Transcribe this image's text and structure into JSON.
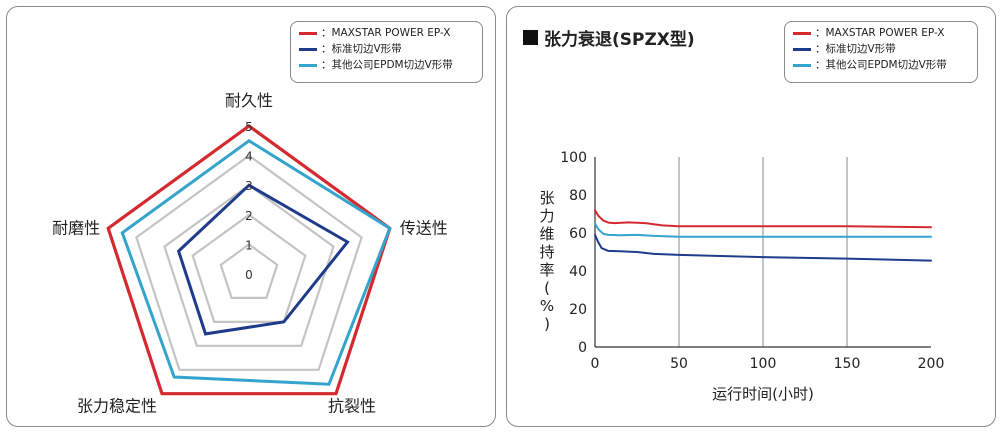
{
  "legend": {
    "items": [
      {
        "label": "：MAXSTAR POWER EP-X",
        "color": "#d42a2f"
      },
      {
        "label": "：标准切边V形带",
        "color": "#1f3c8c"
      },
      {
        "label": "：其他公司EPDM切边V形带",
        "color": "#35a4cc"
      }
    ]
  },
  "chart_data": [
    {
      "type": "radar",
      "axes": [
        "耐久性",
        "传送性",
        "抗裂性",
        "张力稳定性",
        "耐磨性"
      ],
      "scale_ticks": [
        "0",
        "1",
        "2",
        "3",
        "4",
        "5"
      ],
      "range": [
        0,
        5
      ],
      "series": [
        {
          "name": "MAXSTAR POWER EP-X",
          "values": [
            5,
            5,
            5,
            5,
            5
          ],
          "color": "#d42a2f"
        },
        {
          "name": "标准切边V形带",
          "values": [
            3,
            3.5,
            2,
            2.5,
            2.5
          ],
          "color": "#1f3c8c"
        },
        {
          "name": "其他公司EPDM切边V形带",
          "values": [
            4.5,
            5,
            4.6,
            4.3,
            4.5
          ],
          "color": "#35a4cc"
        }
      ],
      "grid_color": "#c4c4c4"
    },
    {
      "type": "line",
      "title": "张力衰退(SPZX型)",
      "xlabel": "运行时间(小时)",
      "ylabel": "张力维持率(%)",
      "xlim": [
        0,
        200
      ],
      "ylim": [
        0,
        100
      ],
      "x_ticks": [
        "0",
        "50",
        "100",
        "150",
        "200"
      ],
      "y_ticks": [
        "0",
        "20",
        "40",
        "60",
        "80",
        "100"
      ],
      "series": [
        {
          "name": "MAXSTAR POWER EP-X",
          "color": "#d42a2f",
          "points": [
            [
              0,
              72
            ],
            [
              2,
              69
            ],
            [
              5,
              66.5
            ],
            [
              8,
              65.5
            ],
            [
              12,
              65.2
            ],
            [
              20,
              65.6
            ],
            [
              30,
              65.2
            ],
            [
              40,
              64
            ],
            [
              50,
              63.6
            ],
            [
              100,
              63.5
            ],
            [
              150,
              63.5
            ],
            [
              200,
              63
            ]
          ]
        },
        {
          "name": "其他公司EPDM切边V形带",
          "color": "#35a4cc",
          "points": [
            [
              0,
              65
            ],
            [
              2,
              62
            ],
            [
              5,
              59.5
            ],
            [
              8,
              59
            ],
            [
              15,
              58.8
            ],
            [
              25,
              59
            ],
            [
              35,
              58.5
            ],
            [
              50,
              58
            ],
            [
              100,
              58
            ],
            [
              150,
              58
            ],
            [
              200,
              58
            ]
          ]
        },
        {
          "name": "标准切边V形带",
          "color": "#1f3c8c",
          "points": [
            [
              0,
              59
            ],
            [
              2,
              55
            ],
            [
              4,
              52
            ],
            [
              8,
              50.6
            ],
            [
              15,
              50.4
            ],
            [
              25,
              50
            ],
            [
              35,
              49
            ],
            [
              50,
              48.5
            ],
            [
              100,
              47.3
            ],
            [
              150,
              46.5
            ],
            [
              200,
              45.5
            ]
          ]
        }
      ],
      "vertical_grid_at": [
        50,
        100,
        150
      ],
      "grid_color": "#c4c4c4"
    }
  ]
}
